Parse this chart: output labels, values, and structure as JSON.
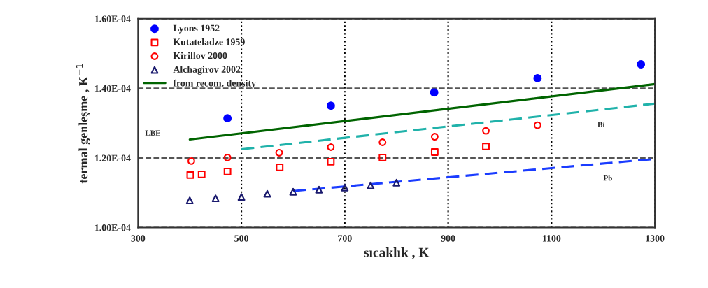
{
  "chart_data": {
    "type": "scatter",
    "xlabel": "sıcaklık , K",
    "ylabel": "termal genleşme , K$^{−1}$",
    "xlim": [
      300,
      1300
    ],
    "xticks": [
      300,
      500,
      700,
      900,
      1100,
      1300
    ],
    "ylim": [
      0.0001,
      0.00016
    ],
    "yticks": [
      {
        "value": 0.0001,
        "label": "1.00E-04"
      },
      {
        "value": 0.00012,
        "label": "1.20E-04"
      },
      {
        "value": 0.00014,
        "label": "1.40E-04"
      },
      {
        "value": 0.00016,
        "label": "1.60E-04"
      }
    ],
    "grid": true,
    "legend": "top left",
    "series": [
      {
        "name": "Lyons 1952",
        "marker": "circle",
        "color": "#0000ff",
        "x": [
          473,
          673,
          873,
          1073,
          1273
        ],
        "values": [
          0.0001314,
          0.000135,
          0.0001388,
          0.0001429,
          0.0001469
        ]
      },
      {
        "name": "Kutateladze 1959",
        "marker": "square",
        "color": "#ff0000",
        "x": [
          401,
          423,
          473,
          574,
          673,
          773,
          874,
          973
        ],
        "values": [
          0.0001151,
          0.0001153,
          0.0001161,
          0.0001173,
          0.0001189,
          0.0001201,
          0.0001217,
          0.0001233
        ]
      },
      {
        "name": "Kirillov 2000",
        "marker": "circle",
        "color": "#ff0000",
        "x": [
          403,
          473,
          573,
          673,
          773,
          874,
          973,
          1073
        ],
        "values": [
          0.0001191,
          0.0001201,
          0.0001215,
          0.0001231,
          0.0001245,
          0.0001261,
          0.0001278,
          0.0001294
        ]
      },
      {
        "name": "Alchagirov 2002",
        "marker": "triangle",
        "color": "#1a1a6e",
        "x": [
          400,
          450,
          500,
          550,
          600,
          650,
          700,
          750,
          800
        ],
        "values": [
          0.0001078,
          0.0001084,
          0.0001088,
          0.0001097,
          0.0001103,
          0.0001109,
          0.0001115,
          0.0001121,
          0.0001129
        ]
      },
      {
        "name": "from recom. density",
        "type": "line",
        "line_style": "solid",
        "color": "#006400",
        "x": [
          400,
          1300
        ],
        "values": [
          0.0001253,
          0.0001412
        ]
      },
      {
        "name": "Bi",
        "type": "line",
        "line_style": "dashed",
        "color": "#20b2aa",
        "x": [
          500,
          1300
        ],
        "values": [
          0.0001225,
          0.0001356
        ]
      },
      {
        "name": "Pb",
        "type": "line",
        "line_style": "dashed",
        "color": "#1a3cff",
        "x": [
          600,
          1300
        ],
        "values": [
          0.0001105,
          0.0001197
        ]
      }
    ],
    "annotations": [
      "LBE"
    ]
  }
}
